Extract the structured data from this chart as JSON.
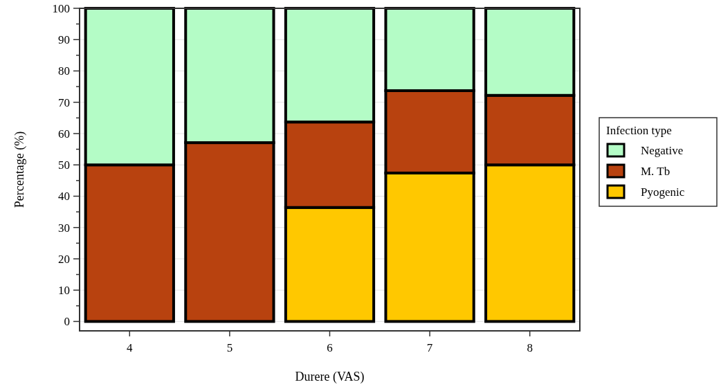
{
  "chart_data": {
    "type": "bar",
    "stacked": true,
    "xlabel": "Durere (VAS)",
    "ylabel": "Percentage (%)",
    "legend_title": "Infection type",
    "legend": "right",
    "grid": "y",
    "categories": [
      "4",
      "5",
      "6",
      "7",
      "8"
    ],
    "series": [
      {
        "name": "Pyogenic",
        "color": "#ffc800",
        "values": [
          0,
          0,
          36.4,
          47.4,
          50
        ]
      },
      {
        "name": "M. Tb",
        "color": "#b8420f",
        "values": [
          50,
          57.1,
          27.3,
          26.3,
          22.2
        ]
      },
      {
        "name": "Negative",
        "color": "#b4fcc6",
        "values": [
          50,
          42.9,
          36.3,
          26.3,
          27.8
        ]
      }
    ],
    "ylim": [
      -3,
      100
    ],
    "yticks": [
      0,
      {
        "value": 5,
        "label": null
      },
      10,
      {
        "value": 15,
        "label": null
      },
      20,
      {
        "value": 25,
        "label": null
      },
      30,
      {
        "value": 35,
        "label": null
      },
      40,
      {
        "value": 45,
        "label": null
      },
      50,
      {
        "value": 55,
        "label": null
      },
      60,
      {
        "value": 65,
        "label": null
      },
      70,
      {
        "value": 75,
        "label": null
      },
      80,
      {
        "value": 85,
        "label": null
      },
      90,
      {
        "value": 95,
        "label": null
      },
      100
    ]
  }
}
